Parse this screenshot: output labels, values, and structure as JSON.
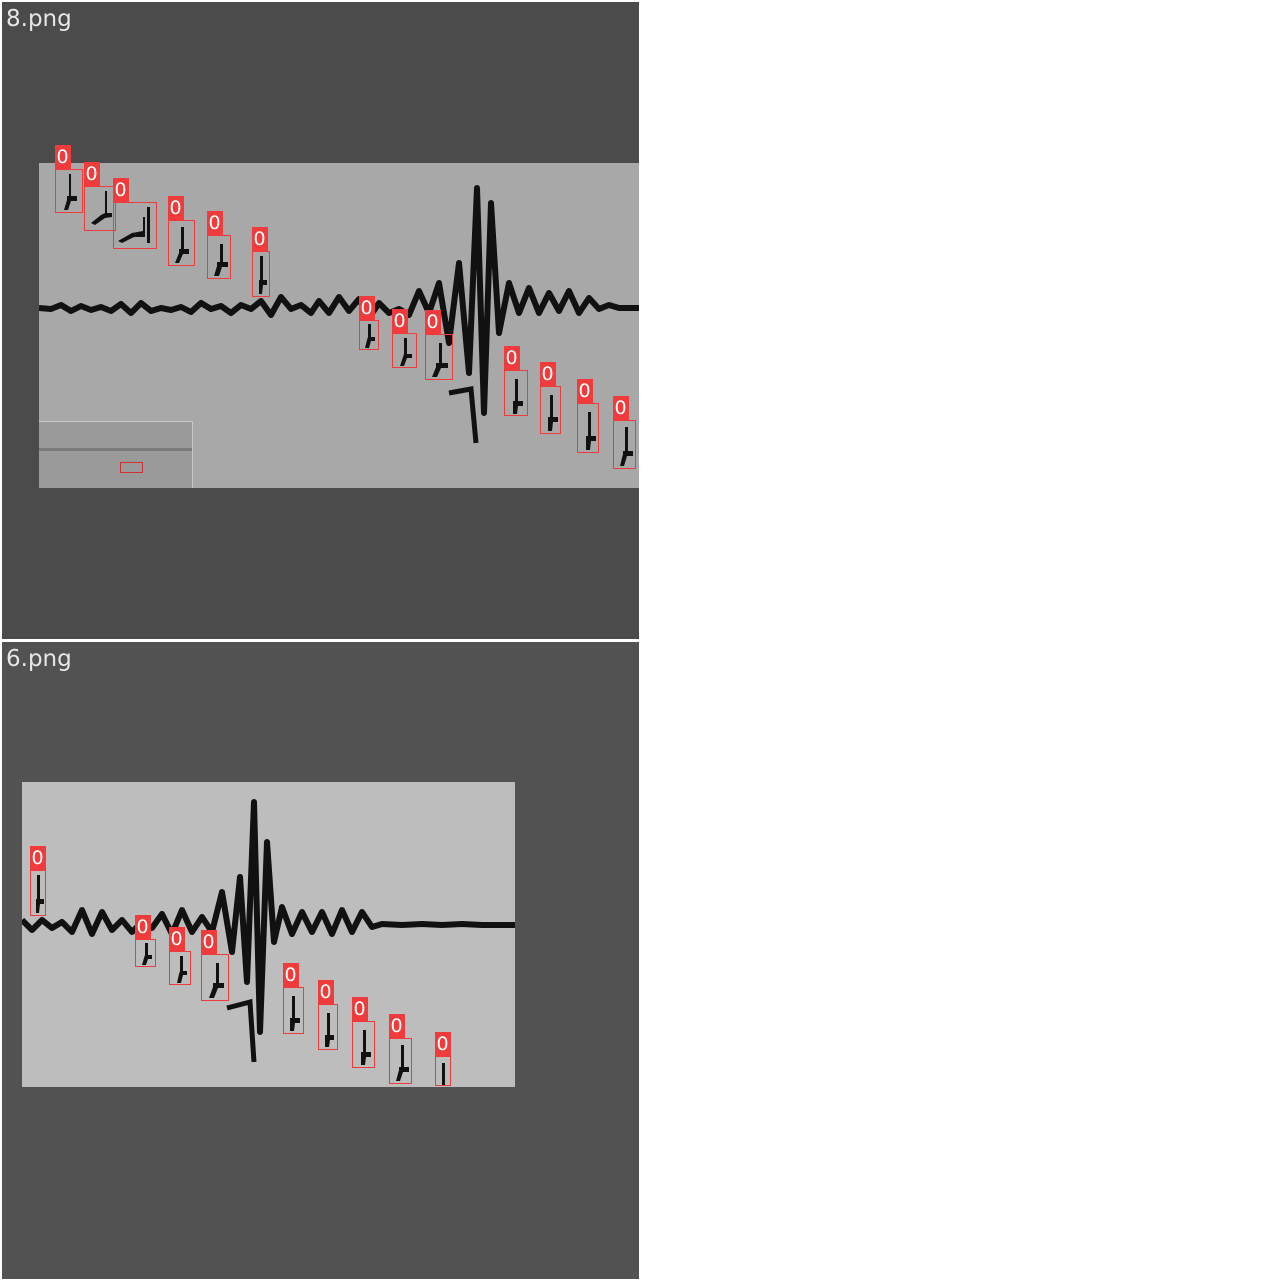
{
  "panels": [
    {
      "title": "8.png",
      "label_text": "0"
    },
    {
      "title": "6.png",
      "label_text": "0"
    }
  ],
  "colors": {
    "panel_bg_top": "#4b4b4b",
    "panel_bg_bottom": "#525252",
    "box": "#ef3b3b",
    "label_text": "#ffffff",
    "trace": "#111111"
  }
}
